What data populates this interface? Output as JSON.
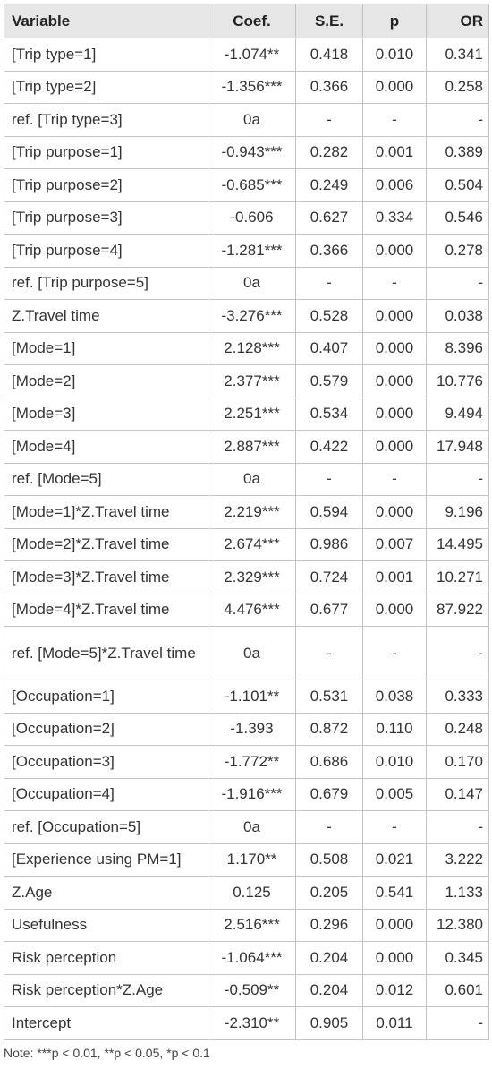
{
  "table": {
    "header": [
      "Variable",
      "Coef.",
      "S.E.",
      "p",
      "OR"
    ],
    "rows": [
      [
        "[Trip type=1]",
        "-1.074**",
        "0.418",
        "0.010",
        "0.341"
      ],
      [
        "[Trip type=2]",
        "-1.356***",
        "0.366",
        "0.000",
        "0.258"
      ],
      [
        "ref. [Trip type=3]",
        "0a",
        "-",
        "-",
        "-"
      ],
      [
        "[Trip purpose=1]",
        "-0.943***",
        "0.282",
        "0.001",
        "0.389"
      ],
      [
        "[Trip purpose=2]",
        "-0.685***",
        "0.249",
        "0.006",
        "0.504"
      ],
      [
        "[Trip purpose=3]",
        "-0.606",
        "0.627",
        "0.334",
        "0.546"
      ],
      [
        "[Trip purpose=4]",
        "-1.281***",
        "0.366",
        "0.000",
        "0.278"
      ],
      [
        "ref. [Trip purpose=5]",
        "0a",
        "-",
        "-",
        "-"
      ],
      [
        "Z.Travel time",
        "-3.276***",
        "0.528",
        "0.000",
        "0.038"
      ],
      [
        "[Mode=1]",
        "2.128***",
        "0.407",
        "0.000",
        "8.396"
      ],
      [
        "[Mode=2]",
        "2.377***",
        "0.579",
        "0.000",
        "10.776"
      ],
      [
        "[Mode=3]",
        "2.251***",
        "0.534",
        "0.000",
        "9.494"
      ],
      [
        "[Mode=4]",
        "2.887***",
        "0.422",
        "0.000",
        "17.948"
      ],
      [
        "ref. [Mode=5]",
        "0a",
        "-",
        "-",
        "-"
      ],
      [
        "[Mode=1]*Z.Travel time",
        "2.219***",
        "0.594",
        "0.000",
        "9.196"
      ],
      [
        "[Mode=2]*Z.Travel time",
        "2.674***",
        "0.986",
        "0.007",
        "14.495"
      ],
      [
        "[Mode=3]*Z.Travel time",
        "2.329***",
        "0.724",
        "0.001",
        "10.271"
      ],
      [
        "[Mode=4]*Z.Travel time",
        "4.476***",
        "0.677",
        "0.000",
        "87.922"
      ],
      [
        "ref. [Mode=5]*Z.Travel time",
        "0a",
        "-",
        "-",
        "-"
      ],
      [
        "[Occupation=1]",
        "-1.101**",
        "0.531",
        "0.038",
        "0.333"
      ],
      [
        "[Occupation=2]",
        "-1.393",
        "0.872",
        "0.110",
        "0.248"
      ],
      [
        "[Occupation=3]",
        "-1.772**",
        "0.686",
        "0.010",
        "0.170"
      ],
      [
        "[Occupation=4]",
        "-1.916***",
        "0.679",
        "0.005",
        "0.147"
      ],
      [
        "ref. [Occupation=5]",
        "0a",
        "-",
        "-",
        "-"
      ],
      [
        "[Experience using PM=1]",
        "1.170**",
        "0.508",
        "0.021",
        "3.222"
      ],
      [
        "Z.Age",
        "0.125",
        "0.205",
        "0.541",
        "1.133"
      ],
      [
        "Usefulness",
        "2.516***",
        "0.296",
        "0.000",
        "12.380"
      ],
      [
        "Risk perception",
        "-1.064***",
        "0.204",
        "0.000",
        "0.345"
      ],
      [
        "Risk perception*Z.Age",
        "-0.509**",
        "0.204",
        "0.012",
        "0.601"
      ],
      [
        "Intercept",
        "-2.310**",
        "0.905",
        "0.011",
        "-"
      ]
    ],
    "note": "Note: ***p < 0.01, **p < 0.05, *p < 0.1"
  }
}
